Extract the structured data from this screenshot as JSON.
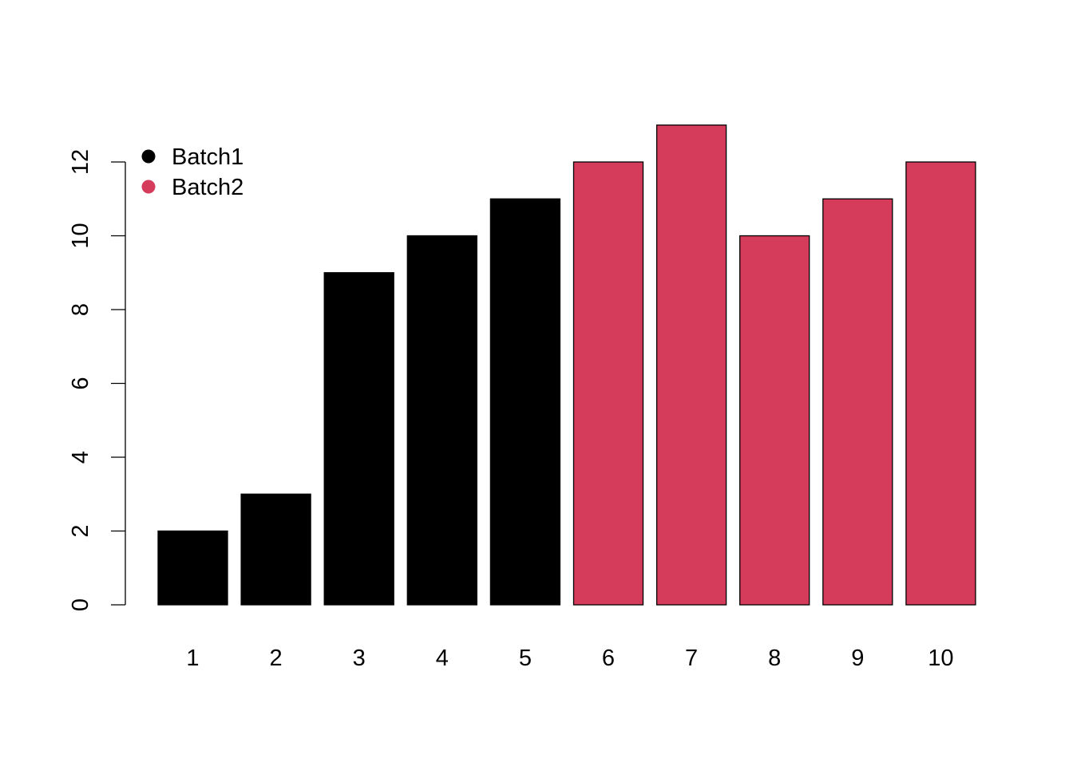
{
  "chart_data": {
    "type": "bar",
    "categories": [
      "1",
      "2",
      "3",
      "4",
      "5",
      "6",
      "7",
      "8",
      "9",
      "10"
    ],
    "values": [
      2,
      3,
      9,
      10,
      11,
      12,
      13,
      10,
      11,
      12
    ],
    "groups": [
      "Batch1",
      "Batch1",
      "Batch1",
      "Batch1",
      "Batch1",
      "Batch2",
      "Batch2",
      "Batch2",
      "Batch2",
      "Batch2"
    ],
    "title": "",
    "xlabel": "",
    "ylabel": "",
    "ylim": [
      0,
      13
    ],
    "yticks": [
      0,
      2,
      4,
      6,
      8,
      10,
      12
    ],
    "grid": false,
    "legend": {
      "placement": "top-left",
      "entries": [
        {
          "label": "Batch1",
          "color": "#000000"
        },
        {
          "label": "Batch2",
          "color": "#D53B5A"
        }
      ]
    },
    "colors": {
      "Batch1": "#000000",
      "Batch2": "#D53B5A"
    }
  }
}
